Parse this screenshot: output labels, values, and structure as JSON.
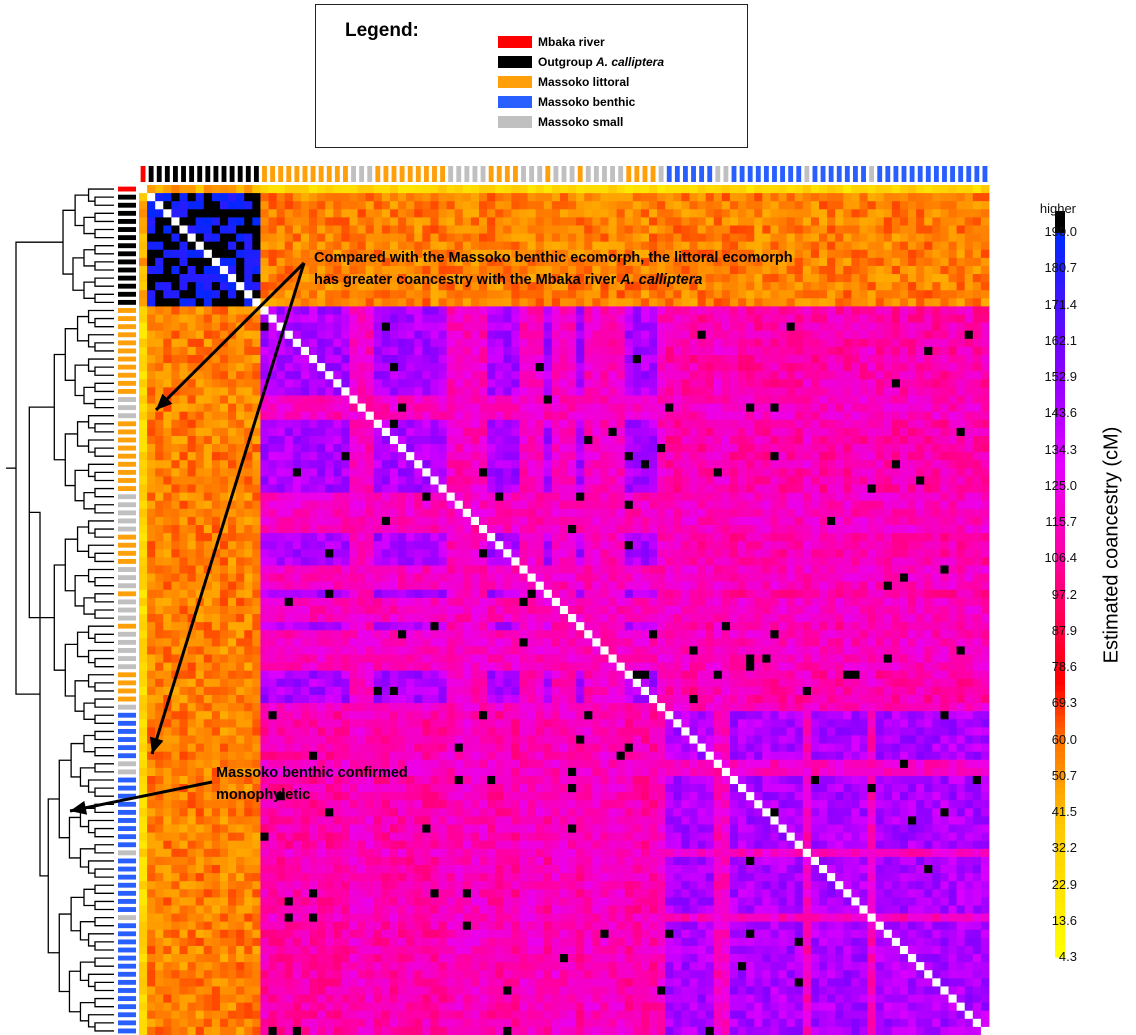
{
  "legend": {
    "title": "Legend:",
    "entries": [
      {
        "group": "mbaka",
        "label": "Mbaka river",
        "label_plain": "",
        "label_italic": "",
        "color": "#ff0000"
      },
      {
        "group": "outgroup",
        "label": "",
        "label_plain": "Outgroup ",
        "label_italic": "A. calliptera",
        "color": "#000000"
      },
      {
        "group": "littoral",
        "label": "Massoko littoral",
        "label_plain": "",
        "label_italic": "",
        "color": "#ff9f0a"
      },
      {
        "group": "benthic",
        "label": "Massoko benthic",
        "label_plain": "",
        "label_italic": "",
        "color": "#2a5fff"
      },
      {
        "group": "small",
        "label": "Massoko small",
        "label_plain": "",
        "label_italic": "",
        "color": "#c0c0c0"
      }
    ]
  },
  "annotations": {
    "littoral": {
      "line1": "Compared with the Massoko benthic ecomorph, the littoral ecomorph",
      "line2_plain": "has greater coancestry with the Mbaka river ",
      "line2_italic": "A. calliptera"
    },
    "benthic": {
      "line1": "Massoko benthic confirmed",
      "line2": "monophyletic"
    }
  },
  "colorbar": {
    "title": "Estimated coancestry (cM)",
    "top_label": "higher",
    "ticks": [
      "190.0",
      "180.7",
      "171.4",
      "162.1",
      "152.9",
      "143.6",
      "134.3",
      "125.0",
      "115.7",
      "106.4",
      "97.2",
      "87.9",
      "78.6",
      "69.3",
      "60.0",
      "50.7",
      "41.5",
      "32.2",
      "22.9",
      "13.6",
      "4.3"
    ],
    "min": 4.3,
    "max": 190.0
  },
  "chart_data": {
    "type": "heatmap",
    "title": "",
    "value_label": "Estimated coancestry (cM)",
    "value_range": [
      4.3,
      190.0
    ],
    "rows_equal_columns": true,
    "diagonal": "blank",
    "sample_order": [
      {
        "group": "mbaka",
        "count": 1
      },
      {
        "group": "outgroup",
        "count": 14
      },
      {
        "group": "littoral",
        "count": 11
      },
      {
        "group": "small",
        "count": 3
      },
      {
        "group": "littoral",
        "count": 9
      },
      {
        "group": "small",
        "count": 5
      },
      {
        "group": "littoral",
        "count": 4
      },
      {
        "group": "small",
        "count": 3
      },
      {
        "group": "littoral",
        "count": 1
      },
      {
        "group": "small",
        "count": 3
      },
      {
        "group": "littoral",
        "count": 1
      },
      {
        "group": "small",
        "count": 5
      },
      {
        "group": "littoral",
        "count": 4
      },
      {
        "group": "small",
        "count": 1
      },
      {
        "group": "benthic",
        "count": 6
      },
      {
        "group": "small",
        "count": 2
      },
      {
        "group": "benthic",
        "count": 9
      },
      {
        "group": "small",
        "count": 1
      },
      {
        "group": "benthic",
        "count": 7
      },
      {
        "group": "small",
        "count": 1
      },
      {
        "group": "benthic",
        "count": 14
      }
    ],
    "block_mean_coancestry": {
      "mbaka-outgroup": 45,
      "mbaka-massoko": 28,
      "outgroup-outgroup": 190,
      "outgroup-massoko": 55,
      "littoral-littoral": 145,
      "littoral-benthic": 110,
      "benthic-benthic": 145,
      "small-any": 115
    }
  }
}
